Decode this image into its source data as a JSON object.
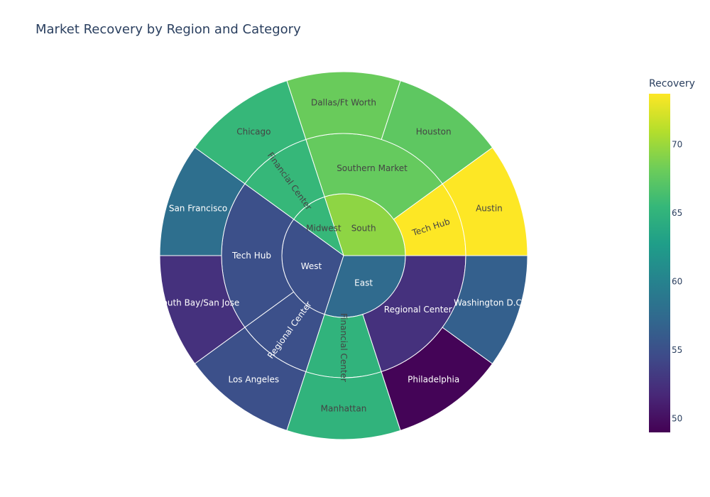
{
  "chart_data": {
    "type": "sunburst",
    "title": "Market Recovery by Region and Category",
    "colorbar": {
      "title": "Recovery",
      "colorscale": "viridis",
      "range": [
        49,
        73.7
      ],
      "ticks": [
        50,
        55,
        60,
        65,
        70
      ]
    },
    "regions": [
      {
        "label": "South",
        "recovery": 69.5,
        "children": [
          {
            "label": "Tech Hub",
            "recovery": 73.7,
            "children": [
              {
                "label": "Austin",
                "recovery": 73.7,
                "weight": 1
              }
            ]
          },
          {
            "label": "Southern Market",
            "recovery": 67.8,
            "children": [
              {
                "label": "Houston",
                "recovery": 67.5,
                "weight": 1
              },
              {
                "label": "Dallas/Ft Worth",
                "recovery": 68.0,
                "weight": 1
              }
            ]
          }
        ]
      },
      {
        "label": "Midwest",
        "recovery": 65.5,
        "children": [
          {
            "label": "Financial Center",
            "recovery": 65.5,
            "children": [
              {
                "label": "Chicago",
                "recovery": 65.5,
                "weight": 1
              }
            ]
          }
        ]
      },
      {
        "label": "West",
        "recovery": 55.0,
        "children": [
          {
            "label": "Tech Hub",
            "recovery": 55.0,
            "children": [
              {
                "label": "San Francisco",
                "recovery": 58.0,
                "weight": 1
              },
              {
                "label": "South Bay/San Jose",
                "recovery": 52.5,
                "weight": 1
              }
            ]
          },
          {
            "label": "Regional Center",
            "recovery": 55.0,
            "children": [
              {
                "label": "Los Angeles",
                "recovery": 55.0,
                "weight": 1
              }
            ]
          }
        ]
      },
      {
        "label": "East",
        "recovery": 57.5,
        "children": [
          {
            "label": "Financial Center",
            "recovery": 65.0,
            "children": [
              {
                "label": "Manhattan",
                "recovery": 65.0,
                "weight": 1
              }
            ]
          },
          {
            "label": "Regional Center",
            "recovery": 52.5,
            "children": [
              {
                "label": "Philadelphia",
                "recovery": 49.2,
                "weight": 1
              },
              {
                "label": "Washington D.C.",
                "recovery": 56.5,
                "weight": 1
              }
            ]
          }
        ]
      }
    ]
  }
}
